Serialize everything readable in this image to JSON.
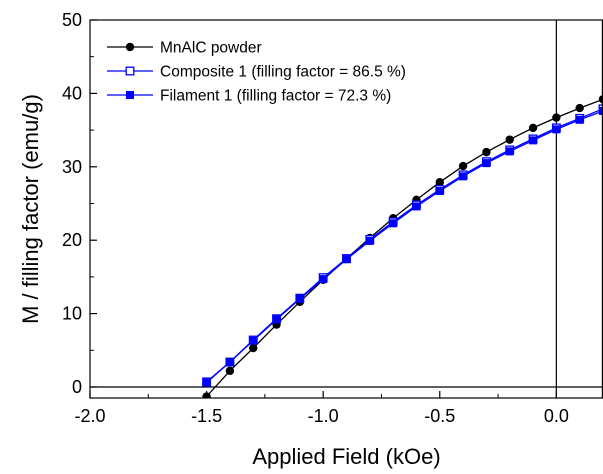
{
  "chart_data": {
    "type": "line",
    "xlabel": "Applied Field (kOe)",
    "ylabel": "M / filling factor (emu/g)",
    "xlim": [
      -2.0,
      0.2
    ],
    "ylim": [
      -1.5,
      50
    ],
    "x_ticks": [
      -2.0,
      -1.5,
      -1.0,
      -0.5,
      0.0
    ],
    "x_tick_labels": [
      "-2.0",
      "-1.5",
      "-1.0",
      "-0.5",
      "0.0"
    ],
    "y_ticks": [
      0,
      10,
      20,
      30,
      40,
      50
    ],
    "y_tick_labels": [
      "0",
      "10",
      "20",
      "30",
      "40",
      "50"
    ],
    "grid": false,
    "legend_position": "top-left",
    "reference_lines": {
      "x": 0,
      "y": 0
    },
    "series": [
      {
        "name": "MnAlC powder",
        "color": "#000000",
        "marker": "filled-circle",
        "x": [
          -1.5,
          -1.4,
          -1.3,
          -1.2,
          -1.1,
          -1.0,
          -0.9,
          -0.8,
          -0.7,
          -0.6,
          -0.5,
          -0.4,
          -0.3,
          -0.2,
          -0.1,
          0.0,
          0.1,
          0.2
        ],
        "y": [
          -1.3,
          2.2,
          5.3,
          8.5,
          11.6,
          14.6,
          17.5,
          20.3,
          23.0,
          25.5,
          27.9,
          30.1,
          32.0,
          33.7,
          35.3,
          36.7,
          38.0,
          39.2
        ]
      },
      {
        "name": "Composite 1 (filling factor = 86.5 %)",
        "color": "#0000ff",
        "marker": "open-square",
        "x": [
          -1.5,
          -1.4,
          -1.3,
          -1.2,
          -1.1,
          -1.0,
          -0.9,
          -0.8,
          -0.7,
          -0.6,
          -0.5,
          -0.4,
          -0.3,
          -0.2,
          -0.1,
          0.0,
          0.1,
          0.2
        ],
        "y": [
          0.7,
          3.4,
          6.4,
          9.3,
          12.1,
          14.9,
          17.5,
          20.1,
          22.5,
          24.8,
          26.9,
          28.9,
          30.7,
          32.3,
          33.8,
          35.3,
          36.6,
          37.9
        ]
      },
      {
        "name": "Filament 1 (filling factor = 72.3 %)",
        "color": "#0000ff",
        "marker": "filled-square",
        "x": [
          -1.5,
          -1.4,
          -1.3,
          -1.2,
          -1.1,
          -1.0,
          -0.9,
          -0.8,
          -0.7,
          -0.6,
          -0.5,
          -0.4,
          -0.3,
          -0.2,
          -0.1,
          0.0,
          0.1,
          0.2
        ],
        "y": [
          0.6,
          3.4,
          6.3,
          9.2,
          12.0,
          14.7,
          17.4,
          19.9,
          22.3,
          24.6,
          26.7,
          28.7,
          30.5,
          32.1,
          33.6,
          35.1,
          36.4,
          37.6
        ]
      }
    ]
  }
}
